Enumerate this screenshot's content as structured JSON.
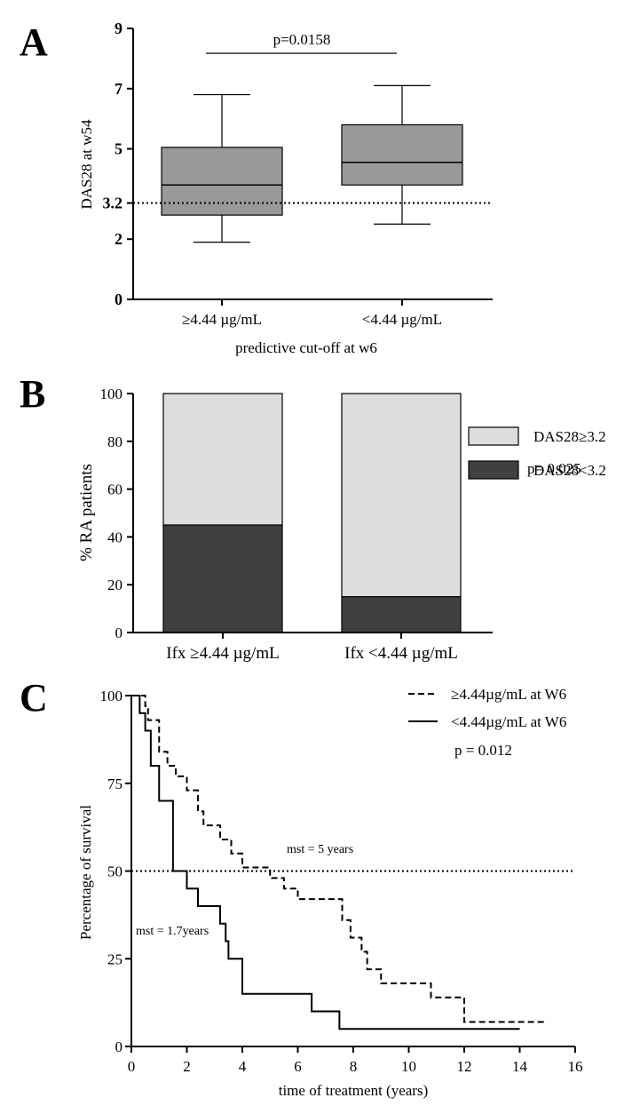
{
  "panels": {
    "a": "A",
    "b": "B",
    "c": "C"
  },
  "chart_data": [
    {
      "type": "box",
      "title": "",
      "ylabel": "DAS28 at w54",
      "xlabel": "predictive cut-off at w6",
      "ylim": [
        0,
        9
      ],
      "yticks": [
        0,
        2,
        3.2,
        5,
        7,
        9
      ],
      "ytick_labels": [
        "0",
        "2",
        "3.2",
        "5",
        "7",
        "9"
      ],
      "reference_line": 3.2,
      "categories": [
        "≥4.44 µg/mL",
        "<4.44 µg/mL"
      ],
      "boxes": [
        {
          "min": 1.9,
          "q1": 2.8,
          "median": 3.8,
          "q3": 5.05,
          "max": 6.8
        },
        {
          "min": 2.5,
          "q1": 3.8,
          "median": 4.55,
          "q3": 5.8,
          "max": 7.1
        }
      ],
      "annotation": "p=0.0158"
    },
    {
      "type": "bar",
      "stacked": true,
      "ylabel": "% RA patients",
      "ylim": [
        0,
        100
      ],
      "yticks": [
        0,
        20,
        40,
        60,
        80,
        100
      ],
      "categories": [
        "Ifx ≥4.44 µg/mL",
        "Ifx <4.44 µg/mL"
      ],
      "series": [
        {
          "name": "DAS28<3.2",
          "color": "#404040",
          "values": [
            45,
            15
          ]
        },
        {
          "name": "DAS28≥3.2",
          "color": "#dddddd",
          "values": [
            55,
            85
          ]
        }
      ],
      "legend_order": [
        "DAS28≥3.2",
        "DAS28<3.2"
      ],
      "annotation": "p= 0.025"
    },
    {
      "type": "line",
      "step": true,
      "ylabel": "Percentage of survival",
      "xlabel": "time of treatment (years)",
      "xlim": [
        0,
        16
      ],
      "ylim": [
        0,
        100
      ],
      "xticks": [
        0,
        2,
        4,
        6,
        8,
        10,
        12,
        14,
        16
      ],
      "yticks": [
        0,
        25,
        50,
        75,
        100
      ],
      "reference_line": 50,
      "series": [
        {
          "name": "≥4.44µg/mL at W6",
          "style": "dashed",
          "x": [
            0,
            0.5,
            0.6,
            1.0,
            1.3,
            1.6,
            2.0,
            2.4,
            2.6,
            3.2,
            3.6,
            4.0,
            5.0,
            5.5,
            6.0,
            7.6,
            7.9,
            8.3,
            8.5,
            9.0,
            10.8,
            12.0,
            15.0
          ],
          "y": [
            100,
            97,
            93,
            84,
            80,
            77,
            73,
            67,
            63,
            59,
            55,
            51,
            48,
            45,
            42,
            36,
            31,
            27,
            22,
            18,
            14,
            7,
            7
          ]
        },
        {
          "name": "<4.44µg/mL at W6",
          "style": "solid",
          "x": [
            0,
            0.3,
            0.5,
            0.7,
            1.0,
            1.5,
            2.0,
            2.4,
            3.2,
            3.4,
            3.5,
            4.0,
            6.5,
            7.5,
            14.0
          ],
          "y": [
            100,
            95,
            90,
            80,
            70,
            50,
            45,
            40,
            35,
            30,
            25,
            15,
            10,
            5,
            5
          ]
        }
      ],
      "annotations": {
        "p": "p = 0.012",
        "mst_high": "mst = 5 years",
        "mst_low": "mst = 1.7years"
      }
    }
  ]
}
